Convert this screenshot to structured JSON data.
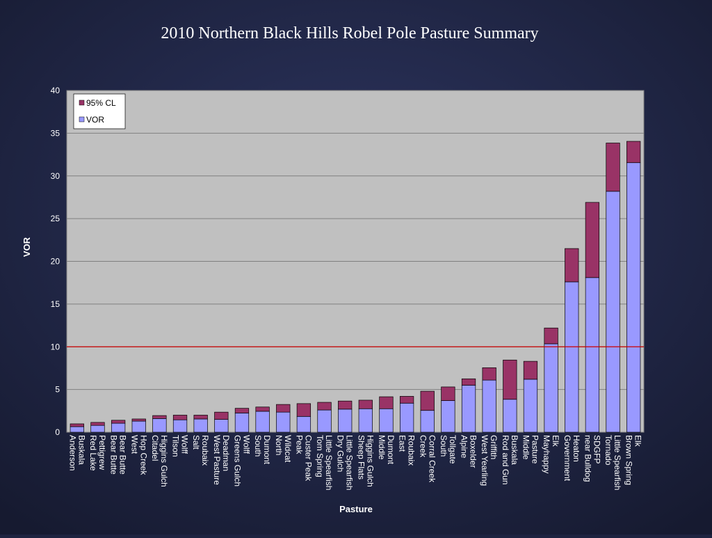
{
  "chart_data": {
    "type": "stacked_bar",
    "title": "2010 Northern Black Hills Robel Pole Pasture Summary",
    "x_label": "Pasture",
    "y_label": "VOR",
    "categories": [
      "Buskala\nAnderson",
      "Pettigrew\nRed Lake",
      "Bear Butte\nBear Butte",
      "Hop Creek\nWest",
      "Higgins Gulch\nCitadel",
      "Wolff\nTilson",
      "Roubaix\nSalt",
      "Deadman\nWest Pasture",
      "Wolff\nGreens Gulch",
      "Dumont\nSouth",
      "Wildcat\nNorth",
      "Custer Peak\nPeak",
      "Little Spearfish\nTom Spring",
      "Little Spearfish\nDry Gulch",
      "Higgins Gulch\nSheep Flats",
      "Dumont\nMiddle",
      "Roubaix\nEast",
      "Corral Creek\nCreek",
      "Tollgate\nSouth",
      "Boxelder\nAlpine",
      "Griffith\nWest Yearling",
      "Buskala\nRod and Gun",
      "Pasture\nMiddle",
      "Elk\nMayhappy",
      "Heaton\nGovernment",
      "SDGFP\nnear Bulldog",
      "Little Spearfish\nTornado",
      "Elk\nBrown Spring"
    ],
    "series": [
      {
        "name": "VOR",
        "color": "#9999ff",
        "values": [
          0.65,
          0.8,
          1.05,
          1.3,
          1.6,
          1.45,
          1.55,
          1.5,
          2.25,
          2.45,
          2.35,
          1.85,
          2.6,
          2.7,
          2.75,
          2.75,
          3.4,
          2.55,
          3.7,
          5.5,
          6.1,
          3.85,
          6.2,
          10.35,
          17.6,
          18.1,
          28.2,
          31.55
        ]
      },
      {
        "name": "95% CL",
        "color": "#993366",
        "values": [
          0.33,
          0.35,
          0.35,
          0.25,
          0.35,
          0.55,
          0.45,
          0.85,
          0.55,
          0.5,
          0.9,
          1.5,
          0.9,
          0.95,
          1.0,
          1.4,
          0.8,
          2.25,
          1.6,
          0.75,
          1.45,
          4.6,
          2.1,
          1.85,
          3.9,
          8.8,
          5.65,
          2.5
        ]
      }
    ],
    "reference_line": {
      "value": 10,
      "color": "#cc0000"
    },
    "ylim": [
      0,
      40
    ],
    "yticks": [
      0,
      5,
      10,
      15,
      20,
      25,
      30,
      35,
      40
    ],
    "grid": true,
    "legend": "top-left"
  }
}
